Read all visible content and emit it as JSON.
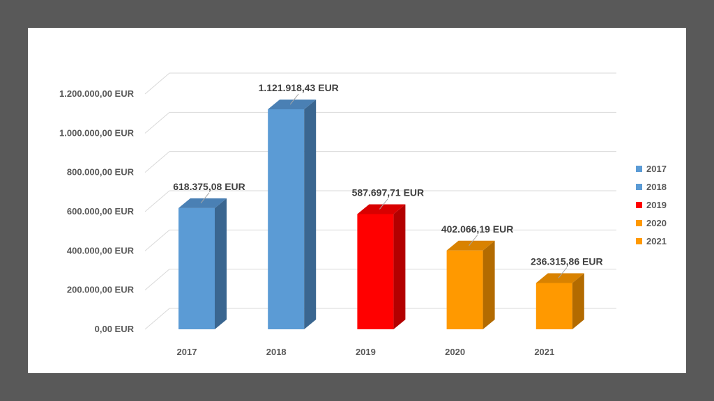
{
  "chart_data": {
    "type": "bar",
    "categories": [
      "2017",
      "2018",
      "2019",
      "2020",
      "2021"
    ],
    "values": [
      618375.08,
      1121918.43,
      587697.71,
      402066.19,
      236315.86
    ],
    "data_labels": [
      "618.375,08 EUR",
      "1.121.918,43 EUR",
      "587.697,71 EUR",
      "402.066,19 EUR",
      "236.315,86 EUR"
    ],
    "colors": [
      "#5b9bd5",
      "#5b9bd5",
      "#ff0000",
      "#ff9900",
      "#ff9900"
    ],
    "side_colors": [
      "#3a6690",
      "#3a6690",
      "#b30000",
      "#b36b00",
      "#b36b00"
    ],
    "top_colors": [
      "#4a80b4",
      "#4a80b4",
      "#d90000",
      "#d98200",
      "#d98200"
    ],
    "ylim": [
      0,
      1200000
    ],
    "yticks": [
      0,
      200000,
      400000,
      600000,
      800000,
      1000000,
      1200000
    ],
    "ytick_labels": [
      "0,00 EUR",
      "200.000,00 EUR",
      "400.000,00 EUR",
      "600.000,00 EUR",
      "800.000,00 EUR",
      "1.000.000,00 EUR",
      "1.200.000,00 EUR"
    ],
    "legend": [
      "2017",
      "2018",
      "2019",
      "2020",
      "2021"
    ],
    "legend_position": "right",
    "grid": true,
    "style": "3d-column"
  }
}
